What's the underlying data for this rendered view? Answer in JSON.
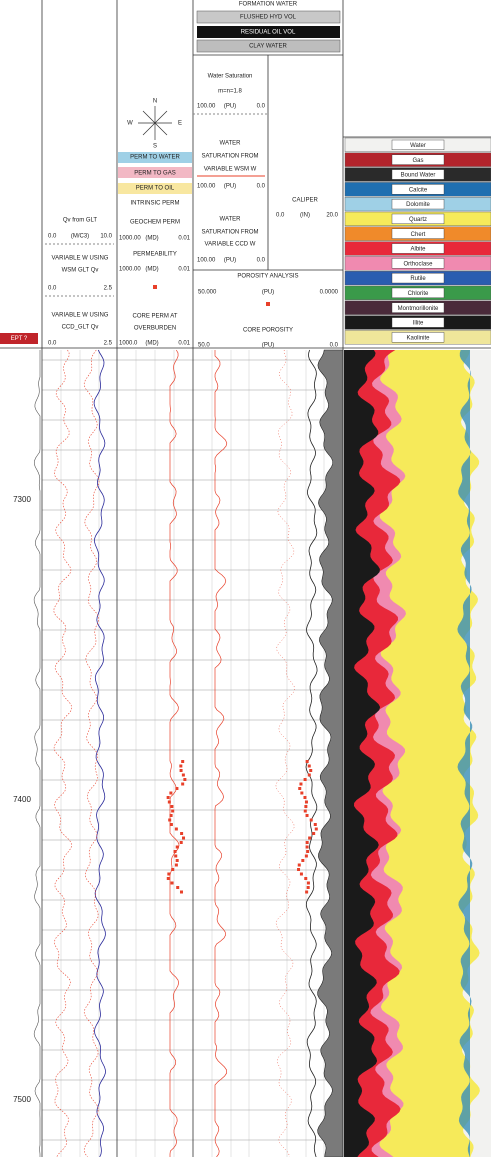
{
  "header": {
    "formation_water": "FORMATION WATER",
    "flushed_hyd_vol": "FLUSHED HYD VOL",
    "residual_oil_vol": "RESIDUAL OIL VOL",
    "clay_water": "CLAY WATER"
  },
  "depth": {
    "label": "EPT ?",
    "ticks": [
      7300,
      7400,
      7500
    ]
  },
  "track1": {
    "qv_title": "Qv from GLT",
    "qv_scale": [
      "0.0",
      "(M/C3)",
      "10.0"
    ],
    "wsm_title": [
      "VARIABLE W USING",
      "WSM GLT Qv"
    ],
    "wsm_scale": [
      "0.0",
      "2.5"
    ],
    "ccd_title": [
      "VARIABLE W USING",
      "CCD_GLT Qv"
    ],
    "ccd_scale": [
      "0.0",
      "2.5"
    ]
  },
  "track2": {
    "compass": [
      "N",
      "E",
      "S",
      "W"
    ],
    "perm_to_water": "PERM TO WATER",
    "perm_to_gas": "PERM TO GAS",
    "perm_to_oil": "PERM TO OIL",
    "intrinsic": "INTRINSIC PERM",
    "geochem": "GEOCHEM PERM",
    "geochem_scale": [
      "1000.00",
      "(MD)",
      "0.01"
    ],
    "permeability": "PERMEABILITY",
    "perm_scale": [
      "1000.00",
      "(MD)",
      "0.01"
    ],
    "core_perm": [
      "CORE PERM AT",
      "OVERBURDEN"
    ],
    "core_scale": [
      "1000.0",
      "(MD)",
      "0.01"
    ]
  },
  "track3": {
    "sw_title": "Water Saturation",
    "sw_param": "m=n=1.8",
    "sw_scale": [
      "100.00",
      "(PU)",
      "0.0"
    ],
    "wsm_title": [
      "WATER",
      "SATURATION FROM",
      "VARIABLE WSM W"
    ],
    "wsm_scale": [
      "100.00",
      "(PU)",
      "0.0"
    ],
    "ccd_title": [
      "WATER",
      "SATURATION FROM",
      "VARIABLE CCD W"
    ],
    "ccd_scale": [
      "100.00",
      "(PU)",
      "0.0"
    ]
  },
  "track4": {
    "caliper": "CALIPER",
    "caliper_scale": [
      "0.0",
      "(IN)",
      "20.0"
    ],
    "porosity": "POROSITY ANALYSIS",
    "porosity_scale": [
      "50.000",
      "(PU)",
      "0.0000"
    ],
    "core_porosity": "CORE POROSITY",
    "core_scale": [
      "50.0",
      "(PU)",
      "0.0"
    ]
  },
  "lithology_legend": [
    {
      "name": "Water",
      "color": "#f2f2f0"
    },
    {
      "name": "Gas",
      "color": "#b3242c"
    },
    {
      "name": "Bound Water",
      "color": "#2a2a2a"
    },
    {
      "name": "Calcite",
      "color": "#1f6fb0"
    },
    {
      "name": "Dolomite",
      "color": "#9fd0e6"
    },
    {
      "name": "Quartz",
      "color": "#f6ea5a"
    },
    {
      "name": "Chert",
      "color": "#f08a2a"
    },
    {
      "name": "Albite",
      "color": "#e8283a"
    },
    {
      "name": "Orthoclase",
      "color": "#f08ab0"
    },
    {
      "name": "Rutile",
      "color": "#2a5db0"
    },
    {
      "name": "Chlorite",
      "color": "#3a9a4a"
    },
    {
      "name": "Montmorillonite",
      "color": "#4a2a3a"
    },
    {
      "name": "Illite",
      "color": "#1a1a1a"
    },
    {
      "name": "Kaolinite",
      "color": "#efe69a"
    }
  ]
}
